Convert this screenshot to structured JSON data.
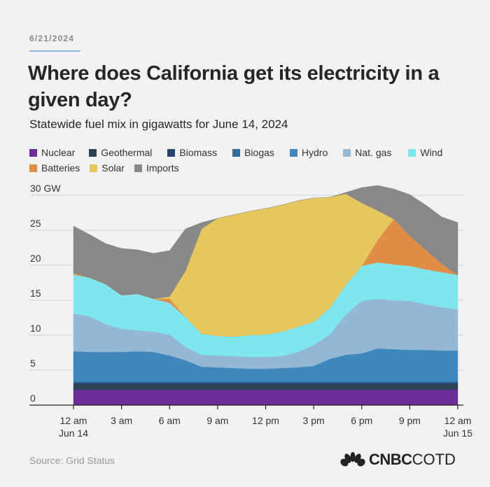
{
  "header": {
    "date": "6/21/2024",
    "title": "Where does California get its electricity in a given day?",
    "subtitle": "Statewide fuel mix in gigawatts for June 14, 2024"
  },
  "footer": {
    "source": "Source: Grid Status",
    "logo_bold": "CNBC",
    "logo_light": "COTD"
  },
  "chart_data": {
    "type": "area",
    "stacked": true,
    "title": "Where does California get its electricity in a given day?",
    "subtitle": "Statewide fuel mix in gigawatts for June 14, 2024",
    "xlabel": "",
    "ylabel": "",
    "ylim": [
      0,
      30
    ],
    "y_ticks": [
      "30 GW",
      "25",
      "20",
      "15",
      "10",
      "5",
      "0"
    ],
    "y_tick_values": [
      30,
      25,
      20,
      15,
      10,
      5,
      0
    ],
    "x_tick_labels": [
      {
        "line1": "12 am",
        "line2": "Jun 14",
        "hour": 0
      },
      {
        "line1": "3 am",
        "line2": "",
        "hour": 3
      },
      {
        "line1": "6 am",
        "line2": "",
        "hour": 6
      },
      {
        "line1": "9 am",
        "line2": "",
        "hour": 9
      },
      {
        "line1": "12 pm",
        "line2": "",
        "hour": 12
      },
      {
        "line1": "3 pm",
        "line2": "",
        "hour": 15
      },
      {
        "line1": "6 pm",
        "line2": "",
        "hour": 18
      },
      {
        "line1": "9 pm",
        "line2": "",
        "hour": 21
      },
      {
        "line1": "12 am",
        "line2": "Jun 15",
        "hour": 24
      }
    ],
    "grid": true,
    "legend_position": "top",
    "x_hours": [
      0,
      1,
      2,
      3,
      4,
      5,
      6,
      7,
      8,
      9,
      10,
      11,
      12,
      13,
      14,
      15,
      16,
      17,
      18,
      19,
      20,
      21,
      22,
      23,
      24
    ],
    "series": [
      {
        "name": "Nuclear",
        "color": "#6a2e99",
        "values": [
          2.2,
          2.2,
          2.2,
          2.2,
          2.2,
          2.2,
          2.2,
          2.2,
          2.2,
          2.2,
          2.2,
          2.2,
          2.2,
          2.2,
          2.2,
          2.2,
          2.2,
          2.2,
          2.2,
          2.2,
          2.2,
          2.2,
          2.2,
          2.2,
          2.2
        ]
      },
      {
        "name": "Geothermal",
        "color": "#2c4255",
        "values": [
          0.8,
          0.8,
          0.8,
          0.8,
          0.8,
          0.8,
          0.8,
          0.8,
          0.8,
          0.8,
          0.8,
          0.8,
          0.8,
          0.8,
          0.8,
          0.8,
          0.8,
          0.8,
          0.8,
          0.8,
          0.8,
          0.8,
          0.8,
          0.8,
          0.8
        ]
      },
      {
        "name": "Biomass",
        "color": "#27476f",
        "values": [
          0.2,
          0.2,
          0.2,
          0.2,
          0.2,
          0.2,
          0.2,
          0.2,
          0.2,
          0.2,
          0.2,
          0.2,
          0.2,
          0.2,
          0.2,
          0.2,
          0.2,
          0.2,
          0.2,
          0.2,
          0.2,
          0.2,
          0.2,
          0.2,
          0.2
        ]
      },
      {
        "name": "Biogas",
        "color": "#2f6e9b",
        "values": [
          0.2,
          0.2,
          0.2,
          0.2,
          0.2,
          0.2,
          0.2,
          0.2,
          0.2,
          0.2,
          0.2,
          0.2,
          0.2,
          0.2,
          0.2,
          0.2,
          0.2,
          0.2,
          0.2,
          0.2,
          0.2,
          0.2,
          0.2,
          0.2,
          0.2
        ]
      },
      {
        "name": "Hydro",
        "color": "#3f88bd",
        "values": [
          4.3,
          4.2,
          4.2,
          4.2,
          4.3,
          4.2,
          3.7,
          3.0,
          2.1,
          2.0,
          1.9,
          1.8,
          1.8,
          1.9,
          2.0,
          2.2,
          3.2,
          3.8,
          4.0,
          4.7,
          4.6,
          4.5,
          4.5,
          4.4,
          4.4
        ]
      },
      {
        "name": "Nat. gas",
        "color": "#94b8d3",
        "values": [
          5.4,
          5.1,
          4.0,
          3.3,
          3.0,
          2.9,
          3.0,
          1.9,
          1.7,
          1.7,
          1.7,
          1.7,
          1.7,
          1.7,
          2.2,
          3.0,
          3.5,
          5.7,
          7.5,
          7.1,
          7.0,
          7.0,
          6.5,
          6.2,
          5.9
        ]
      },
      {
        "name": "Wind",
        "color": "#7fe6ee",
        "values": [
          5.6,
          5.5,
          5.7,
          4.8,
          5.2,
          4.7,
          4.5,
          4.3,
          3.0,
          2.8,
          2.8,
          3.1,
          3.2,
          3.5,
          3.6,
          3.3,
          3.8,
          4.3,
          5.0,
          5.2,
          5.1,
          5.0,
          5.0,
          5.0,
          4.9
        ]
      },
      {
        "name": "Batteries",
        "color": "#e08d47",
        "values": [
          0.2,
          0,
          0,
          0,
          0,
          0,
          0.6,
          0,
          0,
          0,
          0,
          0,
          0,
          0,
          0,
          0,
          0,
          0,
          0,
          3.2,
          6.5,
          4.3,
          2.8,
          1.2,
          0
        ]
      },
      {
        "name": "Solar",
        "color": "#e6c75e",
        "values": [
          0,
          0,
          0,
          0,
          0,
          0,
          0.3,
          6.6,
          15.0,
          16.8,
          17.4,
          17.7,
          18.0,
          18.1,
          18.0,
          17.7,
          15.8,
          13.0,
          9.0,
          4.2,
          0,
          0,
          0,
          0,
          0
        ]
      },
      {
        "name": "Imports",
        "color": "#888888",
        "values": [
          6.7,
          6.2,
          5.8,
          6.7,
          6.3,
          6.5,
          6.6,
          6.0,
          0.9,
          0,
          0,
          0,
          0,
          0,
          0,
          0,
          0,
          0.2,
          2.2,
          3.6,
          4.3,
          5.9,
          6.4,
          6.7,
          7.5
        ]
      }
    ]
  }
}
